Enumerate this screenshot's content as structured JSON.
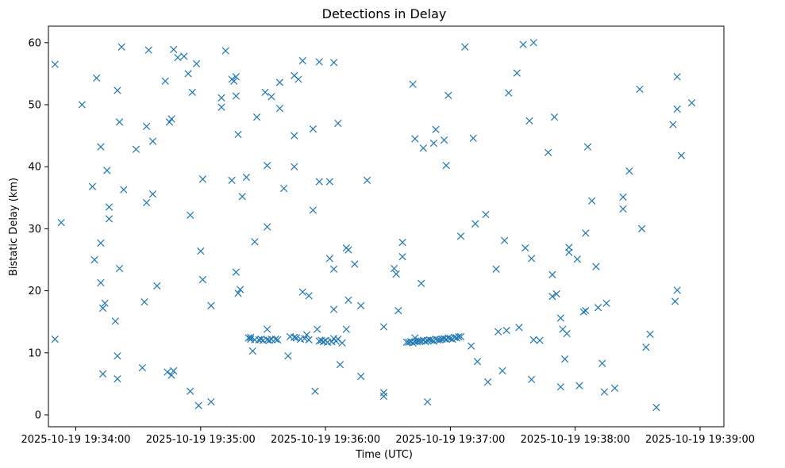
{
  "chart_data": {
    "type": "scatter",
    "title": "Detections in Delay",
    "xlabel": "Time (UTC)",
    "ylabel": "Bistatic Delay (km)",
    "marker": "x",
    "color": "#1f77b4",
    "x_unit": "seconds after 2025-10-19 19:34:00",
    "xlim": [
      -15,
      320
    ],
    "ylim": [
      -2,
      63
    ],
    "xticks": [
      0,
      60,
      120,
      180,
      240,
      300,
      360
    ],
    "xtick_labels": [
      "2025-10-19 19:34:00",
      "2025-10-19 19:35:00",
      "2025-10-19 19:36:00",
      "2025-10-19 19:37:00",
      "2025-10-19 19:38:00",
      "2025-10-19 19:39:00",
      ""
    ],
    "yticks": [
      0,
      10,
      20,
      30,
      40,
      50,
      60
    ],
    "ytick_labels": [
      "0",
      "10",
      "20",
      "30",
      "40",
      "50",
      "60"
    ],
    "points": [
      [
        -10,
        56.5
      ],
      [
        -10,
        12.2
      ],
      [
        -7,
        31
      ],
      [
        3,
        50
      ],
      [
        8,
        36.8
      ],
      [
        9,
        25
      ],
      [
        10,
        54.3
      ],
      [
        12,
        27.7
      ],
      [
        12,
        21.3
      ],
      [
        12,
        43.2
      ],
      [
        13,
        6.6
      ],
      [
        13,
        17.2
      ],
      [
        14,
        18
      ],
      [
        15,
        39.4
      ],
      [
        16,
        33.5
      ],
      [
        16,
        31.6
      ],
      [
        19,
        15.1
      ],
      [
        20,
        9.5
      ],
      [
        20,
        5.8
      ],
      [
        20,
        52.3
      ],
      [
        21,
        47.2
      ],
      [
        21,
        23.6
      ],
      [
        22,
        59.3
      ],
      [
        23,
        36.3
      ],
      [
        29,
        42.8
      ],
      [
        32,
        7.6
      ],
      [
        33,
        18.2
      ],
      [
        34,
        46.5
      ],
      [
        34,
        34.2
      ],
      [
        35,
        58.8
      ],
      [
        37,
        44.1
      ],
      [
        37,
        35.6
      ],
      [
        39,
        20.8
      ],
      [
        43,
        53.8
      ],
      [
        44,
        6.9
      ],
      [
        45,
        47.2
      ],
      [
        46,
        47.7
      ],
      [
        46,
        6.4
      ],
      [
        47,
        7.1
      ],
      [
        47,
        58.9
      ],
      [
        49,
        57.6
      ],
      [
        52,
        57.8
      ],
      [
        54,
        55
      ],
      [
        55,
        32.2
      ],
      [
        55,
        3.8
      ],
      [
        56,
        52
      ],
      [
        58,
        56.6
      ],
      [
        59,
        1.5
      ],
      [
        60,
        26.4
      ],
      [
        61,
        38
      ],
      [
        61,
        21.8
      ],
      [
        65,
        17.6
      ],
      [
        65,
        2.1
      ],
      [
        70,
        51.1
      ],
      [
        70,
        49.6
      ],
      [
        72,
        58.7
      ],
      [
        75,
        37.8
      ],
      [
        75,
        54.1
      ],
      [
        76,
        53.8
      ],
      [
        77,
        54.5
      ],
      [
        77,
        51.4
      ],
      [
        77,
        23
      ],
      [
        78,
        45.2
      ],
      [
        78,
        19.6
      ],
      [
        79,
        20.2
      ],
      [
        80,
        35.2
      ],
      [
        82,
        38.3
      ],
      [
        83,
        12.4
      ],
      [
        84,
        12.2
      ],
      [
        84,
        12.5
      ],
      [
        85,
        10.3
      ],
      [
        86,
        12.1
      ],
      [
        86,
        27.9
      ],
      [
        87,
        48
      ],
      [
        88,
        12.1
      ],
      [
        89,
        12.2
      ],
      [
        90,
        12
      ],
      [
        91,
        52
      ],
      [
        92,
        12.1
      ],
      [
        92,
        40.2
      ],
      [
        92,
        30.3
      ],
      [
        92,
        13.8
      ],
      [
        93,
        12
      ],
      [
        94,
        12.2
      ],
      [
        94,
        51.3
      ],
      [
        96,
        12.2
      ],
      [
        97,
        12.1
      ],
      [
        98,
        53.6
      ],
      [
        98,
        49.4
      ],
      [
        100,
        36.5
      ],
      [
        102,
        9.5
      ],
      [
        103,
        12.6
      ],
      [
        105,
        12.5
      ],
      [
        105,
        54.7
      ],
      [
        105,
        45
      ],
      [
        105,
        40
      ],
      [
        106,
        12.4
      ],
      [
        107,
        54.1
      ],
      [
        108,
        12.2
      ],
      [
        109,
        57.1
      ],
      [
        109,
        19.8
      ],
      [
        110,
        12.3
      ],
      [
        111,
        12.9
      ],
      [
        112,
        12.1
      ],
      [
        112,
        19.2
      ],
      [
        114,
        33
      ],
      [
        114,
        46.1
      ],
      [
        115,
        3.8
      ],
      [
        116,
        13.8
      ],
      [
        117,
        11.9
      ],
      [
        117,
        56.9
      ],
      [
        117,
        37.6
      ],
      [
        118,
        12
      ],
      [
        119,
        11.8
      ],
      [
        120,
        12
      ],
      [
        121,
        11.7
      ],
      [
        122,
        37.6
      ],
      [
        122,
        25.2
      ],
      [
        123,
        11.8
      ],
      [
        124,
        23.5
      ],
      [
        124,
        17
      ],
      [
        124,
        12.3
      ],
      [
        124,
        56.8
      ],
      [
        125,
        11.9
      ],
      [
        126,
        47
      ],
      [
        126,
        12.2
      ],
      [
        127,
        8.1
      ],
      [
        128,
        11.6
      ],
      [
        130,
        26.9
      ],
      [
        130,
        13.8
      ],
      [
        131,
        26.6
      ],
      [
        131,
        18.5
      ],
      [
        134,
        24.3
      ],
      [
        137,
        17.6
      ],
      [
        137,
        6.2
      ],
      [
        140,
        37.8
      ],
      [
        148,
        14.2
      ],
      [
        148,
        3.6
      ],
      [
        148,
        3
      ],
      [
        153,
        23.6
      ],
      [
        154,
        22.7
      ],
      [
        155,
        16.8
      ],
      [
        157,
        25.5
      ],
      [
        157,
        27.8
      ],
      [
        159,
        11.7
      ],
      [
        160,
        11.7
      ],
      [
        161,
        11.8
      ],
      [
        162,
        11.6
      ],
      [
        162,
        53.3
      ],
      [
        163,
        11.8
      ],
      [
        163,
        12.4
      ],
      [
        163,
        44.5
      ],
      [
        164,
        11.8
      ],
      [
        165,
        11.9
      ],
      [
        166,
        11.9
      ],
      [
        166,
        21.2
      ],
      [
        167,
        12
      ],
      [
        167,
        43
      ],
      [
        168,
        11.8
      ],
      [
        169,
        12
      ],
      [
        169,
        2.1
      ],
      [
        170,
        12.1
      ],
      [
        171,
        12
      ],
      [
        172,
        11.9
      ],
      [
        172,
        43.8
      ],
      [
        173,
        12.2
      ],
      [
        173,
        46
      ],
      [
        174,
        12.1
      ],
      [
        175,
        12.1
      ],
      [
        176,
        12.2
      ],
      [
        177,
        12.3
      ],
      [
        177,
        44.3
      ],
      [
        178,
        12.2
      ],
      [
        178,
        40.2
      ],
      [
        179,
        12.4
      ],
      [
        179,
        51.5
      ],
      [
        180,
        12.3
      ],
      [
        181,
        12.2
      ],
      [
        182,
        12.5
      ],
      [
        183,
        12.4
      ],
      [
        184,
        12.6
      ],
      [
        185,
        28.8
      ],
      [
        185,
        12.6
      ],
      [
        187,
        59.3
      ],
      [
        190,
        11.1
      ],
      [
        191,
        44.6
      ],
      [
        192,
        30.8
      ],
      [
        193,
        8.6
      ],
      [
        197,
        32.3
      ],
      [
        198,
        5.3
      ],
      [
        202,
        23.5
      ],
      [
        203,
        13.4
      ],
      [
        205,
        7.1
      ],
      [
        206,
        28.1
      ],
      [
        207,
        13.6
      ],
      [
        208,
        51.9
      ],
      [
        212,
        55.1
      ],
      [
        213,
        14.1
      ],
      [
        215,
        59.7
      ],
      [
        216,
        26.9
      ],
      [
        218,
        47.4
      ],
      [
        219,
        25.2
      ],
      [
        219,
        5.7
      ],
      [
        220,
        60
      ],
      [
        220,
        12.1
      ],
      [
        223,
        12
      ],
      [
        227,
        42.3
      ],
      [
        229,
        22.6
      ],
      [
        229,
        19.1
      ],
      [
        230,
        48
      ],
      [
        231,
        19.5
      ],
      [
        233,
        15.6
      ],
      [
        233,
        4.5
      ],
      [
        234,
        13.8
      ],
      [
        235,
        9
      ],
      [
        236,
        13.1
      ],
      [
        237,
        27
      ],
      [
        237,
        26.2
      ],
      [
        241,
        25.1
      ],
      [
        242,
        4.7
      ],
      [
        244,
        16.6
      ],
      [
        245,
        16.8
      ],
      [
        245,
        29.3
      ],
      [
        246,
        43.2
      ],
      [
        248,
        34.5
      ],
      [
        250,
        23.9
      ],
      [
        251,
        17.3
      ],
      [
        253,
        8.3
      ],
      [
        254,
        3.7
      ],
      [
        255,
        18
      ],
      [
        259,
        4.3
      ],
      [
        263,
        35.1
      ],
      [
        263,
        33.2
      ],
      [
        266,
        39.3
      ],
      [
        271,
        52.5
      ],
      [
        272,
        30
      ],
      [
        274,
        10.9
      ],
      [
        276,
        13
      ],
      [
        279,
        1.2
      ],
      [
        287,
        46.8
      ],
      [
        288,
        18.3
      ],
      [
        289,
        54.5
      ],
      [
        289,
        49.3
      ],
      [
        289,
        20.1
      ],
      [
        291,
        41.8
      ],
      [
        296,
        50.3
      ]
    ]
  }
}
